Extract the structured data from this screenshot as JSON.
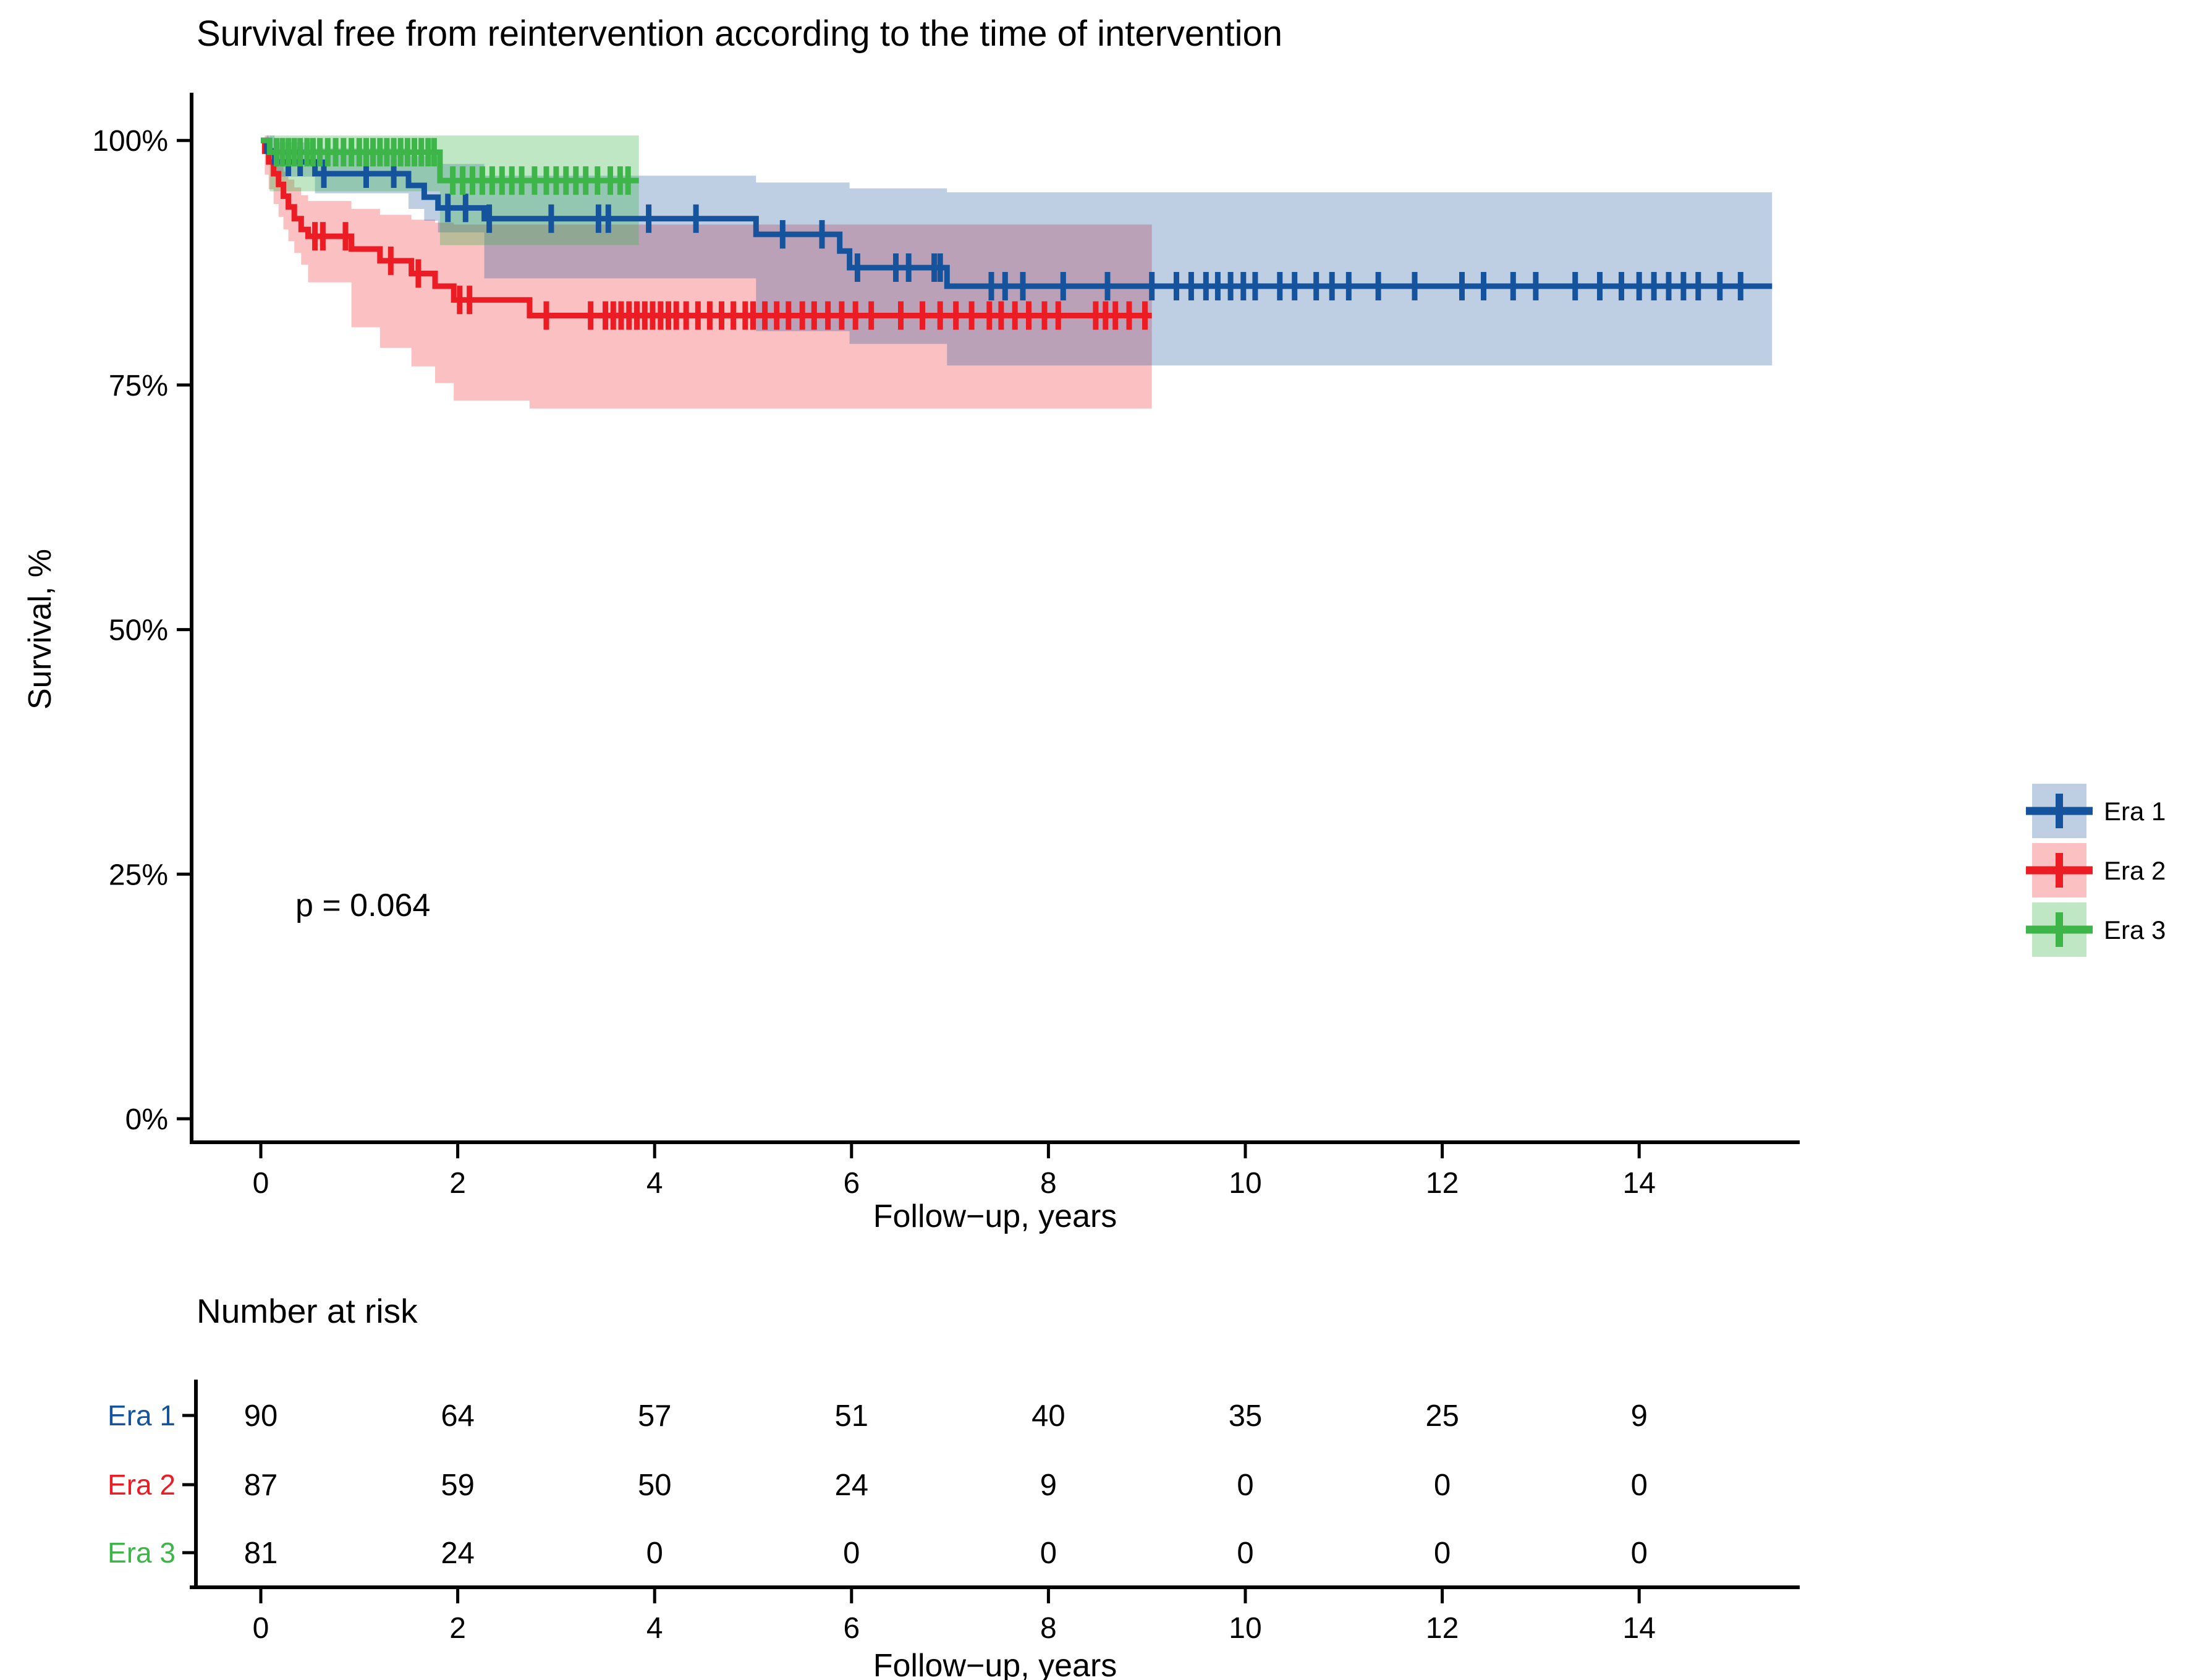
{
  "title": "Survival free from reintervention according to the time of intervention",
  "p_value_label": "p = 0.064",
  "axes": {
    "y_label": "Survival, %",
    "x_label": "Follow−up, years",
    "y_ticks": [
      {
        "v": 100,
        "label": "100%"
      },
      {
        "v": 75,
        "label": "75%"
      },
      {
        "v": 50,
        "label": "50%"
      },
      {
        "v": 25,
        "label": "25%"
      },
      {
        "v": 0,
        "label": "0%"
      }
    ],
    "x_ticks": [
      {
        "v": 0,
        "label": "0"
      },
      {
        "v": 2,
        "label": "2"
      },
      {
        "v": 4,
        "label": "4"
      },
      {
        "v": 6,
        "label": "6"
      },
      {
        "v": 8,
        "label": "8"
      },
      {
        "v": 10,
        "label": "10"
      },
      {
        "v": 12,
        "label": "12"
      },
      {
        "v": 14,
        "label": "14"
      }
    ],
    "x_range": [
      0,
      15.7
    ],
    "y_range": [
      0,
      100
    ]
  },
  "chart_data": {
    "type": "line",
    "subtype": "kaplan-meier-step",
    "title": "Survival free from reintervention according to the time of intervention",
    "xlabel": "Follow−up, years",
    "ylabel": "Survival, %",
    "xlim": [
      0,
      15.7
    ],
    "ylim": [
      0,
      100
    ],
    "grid": false,
    "legend_position": "right",
    "p_value": 0.064,
    "series": [
      {
        "name": "Era 1",
        "color": "#15549d",
        "band_color": "#15549d",
        "band_opacity": 0.28,
        "end": 15.35,
        "points": [
          [
            0,
            100
          ],
          [
            0.06,
            98.9
          ],
          [
            0.14,
            97.8
          ],
          [
            0.55,
            96.6
          ],
          [
            1.5,
            95.4
          ],
          [
            1.66,
            94.2
          ],
          [
            1.8,
            93.1
          ],
          [
            2.27,
            92.0
          ],
          [
            5.03,
            90.4
          ],
          [
            5.88,
            88.7
          ],
          [
            5.98,
            87.0
          ],
          [
            6.97,
            85.1
          ]
        ],
        "censors": [
          0.28,
          0.4,
          0.64,
          1.07,
          1.35,
          1.9,
          2.08,
          2.32,
          2.95,
          3.43,
          3.53,
          3.94,
          4.42,
          5.3,
          5.7,
          6.06,
          6.45,
          6.58,
          6.84,
          6.9,
          7.42,
          7.56,
          7.74,
          8.15,
          8.6,
          9.05,
          9.3,
          9.45,
          9.6,
          9.72,
          9.85,
          9.98,
          10.1,
          10.35,
          10.5,
          10.72,
          10.88,
          11.05,
          11.35,
          11.72,
          12.2,
          12.42,
          12.72,
          12.95,
          13.35,
          13.6,
          13.82,
          14.0,
          14.15,
          14.3,
          14.45,
          14.6,
          14.82,
          15.03
        ],
        "band_upper": [
          [
            0,
            100.5
          ],
          [
            0.14,
            99.8
          ],
          [
            0.55,
            99.2
          ],
          [
            1.5,
            98.4
          ],
          [
            1.8,
            97.6
          ],
          [
            2.27,
            96.4
          ],
          [
            5.03,
            95.7
          ],
          [
            5.98,
            95.1
          ],
          [
            6.97,
            94.7
          ]
        ],
        "band_lower": [
          [
            0,
            100.5
          ],
          [
            0.06,
            98.0
          ],
          [
            0.14,
            96.3
          ],
          [
            0.55,
            94.6
          ],
          [
            1.5,
            93.0
          ],
          [
            1.66,
            91.8
          ],
          [
            1.8,
            90.6
          ],
          [
            2.27,
            85.9
          ],
          [
            5.03,
            80.5
          ],
          [
            5.98,
            79.2
          ],
          [
            6.97,
            77.0
          ]
        ]
      },
      {
        "name": "Era 2",
        "color": "#ec1c24",
        "band_color": "#ec1c24",
        "band_opacity": 0.28,
        "end": 9.05,
        "points": [
          [
            0,
            100
          ],
          [
            0.04,
            98.9
          ],
          [
            0.08,
            97.8
          ],
          [
            0.13,
            96.6
          ],
          [
            0.18,
            95.5
          ],
          [
            0.23,
            94.3
          ],
          [
            0.28,
            93.2
          ],
          [
            0.34,
            92.0
          ],
          [
            0.41,
            90.9
          ],
          [
            0.48,
            90.2
          ],
          [
            0.92,
            88.9
          ],
          [
            1.21,
            87.7
          ],
          [
            1.53,
            86.4
          ],
          [
            1.77,
            85.1
          ],
          [
            1.96,
            83.7
          ],
          [
            2.73,
            82.1
          ]
        ],
        "censors": [
          0.55,
          0.63,
          0.86,
          1.32,
          1.6,
          2.02,
          2.12,
          2.9,
          3.35,
          3.5,
          3.58,
          3.66,
          3.74,
          3.82,
          3.9,
          3.98,
          4.06,
          4.14,
          4.22,
          4.32,
          4.44,
          4.56,
          4.68,
          4.8,
          4.92,
          5.0,
          5.12,
          5.24,
          5.36,
          5.5,
          5.62,
          5.76,
          5.9,
          6.04,
          6.2,
          6.5,
          6.72,
          6.9,
          7.06,
          7.22,
          7.4,
          7.52,
          7.66,
          7.8,
          7.96,
          8.1,
          8.48,
          8.58,
          8.68,
          8.82,
          8.98
        ],
        "band_upper": [
          [
            0,
            100.5
          ],
          [
            0.08,
            99.3
          ],
          [
            0.13,
            98.4
          ],
          [
            0.18,
            97.6
          ],
          [
            0.23,
            96.8
          ],
          [
            0.28,
            96.0
          ],
          [
            0.34,
            95.2
          ],
          [
            0.41,
            94.4
          ],
          [
            0.48,
            93.8
          ],
          [
            0.92,
            93.0
          ],
          [
            1.21,
            92.4
          ],
          [
            1.53,
            91.9
          ],
          [
            1.77,
            91.6
          ],
          [
            1.96,
            91.4
          ]
        ],
        "band_lower": [
          [
            0,
            100.5
          ],
          [
            0.04,
            96.5
          ],
          [
            0.08,
            95.0
          ],
          [
            0.13,
            93.5
          ],
          [
            0.18,
            92.2
          ],
          [
            0.23,
            90.9
          ],
          [
            0.28,
            89.7
          ],
          [
            0.34,
            88.5
          ],
          [
            0.41,
            87.3
          ],
          [
            0.48,
            85.5
          ],
          [
            0.92,
            80.9
          ],
          [
            1.21,
            78.8
          ],
          [
            1.53,
            76.9
          ],
          [
            1.77,
            75.2
          ],
          [
            1.96,
            73.4
          ],
          [
            2.73,
            72.6
          ]
        ]
      },
      {
        "name": "Era 3",
        "color": "#3eb549",
        "band_color": "#3eb549",
        "band_opacity": 0.33,
        "end": 3.84,
        "points": [
          [
            0,
            100
          ],
          [
            0.09,
            98.8
          ],
          [
            1.82,
            95.9
          ]
        ],
        "censors": [
          0.16,
          0.22,
          0.28,
          0.34,
          0.4,
          0.47,
          0.53,
          0.6,
          0.68,
          0.76,
          0.84,
          0.92,
          1.0,
          1.07,
          1.14,
          1.21,
          1.28,
          1.35,
          1.42,
          1.49,
          1.56,
          1.63,
          1.7,
          1.76,
          1.95,
          2.05,
          2.15,
          2.25,
          2.35,
          2.45,
          2.55,
          2.65,
          2.78,
          2.9,
          3.0,
          3.1,
          3.2,
          3.3,
          3.42,
          3.55,
          3.65,
          3.73
        ],
        "band_upper": [
          [
            0,
            100.5
          ]
        ],
        "band_lower": [
          [
            0,
            100.5
          ],
          [
            0.09,
            94.8
          ],
          [
            1.82,
            89.3
          ]
        ]
      }
    ]
  },
  "legend": {
    "items": [
      {
        "label": "Era 1"
      },
      {
        "label": "Era 2"
      },
      {
        "label": "Era 3"
      }
    ]
  },
  "risk_table": {
    "title": "Number at risk",
    "x_label": "Follow−up, years",
    "times": [
      0,
      2,
      4,
      6,
      8,
      10,
      12,
      14
    ],
    "rows": [
      {
        "name": "Era 1",
        "values": [
          "90",
          "64",
          "57",
          "51",
          "40",
          "35",
          "25",
          "9"
        ]
      },
      {
        "name": "Era 2",
        "values": [
          "87",
          "59",
          "50",
          "24",
          "9",
          "0",
          "0",
          "0"
        ]
      },
      {
        "name": "Era 3",
        "values": [
          "81",
          "24",
          "0",
          "0",
          "0",
          "0",
          "0",
          "0"
        ]
      }
    ]
  }
}
